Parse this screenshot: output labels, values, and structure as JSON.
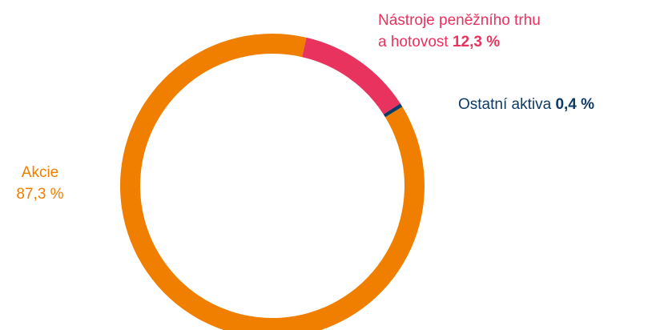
{
  "chart_data": {
    "type": "donut",
    "categories": [
      "Akcie",
      "Nástroje peněžního trhu a hotovost",
      "Ostatní aktiva"
    ],
    "values": [
      87.3,
      12.3,
      0.4
    ],
    "value_labels": [
      "87,3 %",
      "12,3 %",
      "0,4 %"
    ],
    "colors": [
      "#f07f00",
      "#e8335f",
      "#0d3b66"
    ]
  }
}
